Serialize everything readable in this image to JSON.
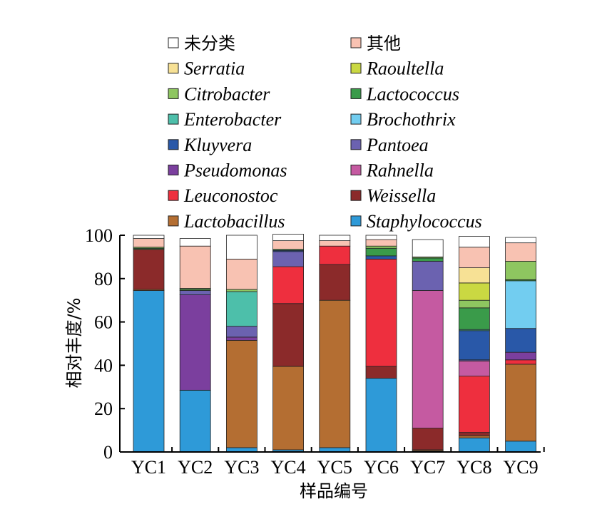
{
  "chart_data": {
    "type": "bar",
    "stacked": true,
    "title": "",
    "xlabel": "样品编号",
    "ylabel": "相对丰度/%",
    "ylim": [
      0,
      100
    ],
    "yticks": [
      0,
      20,
      40,
      60,
      80,
      100
    ],
    "grid": false,
    "legend_position": "top",
    "categories": [
      "YC1",
      "YC2",
      "YC3",
      "YC4",
      "YC5",
      "YC6",
      "YC7",
      "YC8",
      "YC9"
    ],
    "legend_order": [
      "未分类",
      "其他",
      "Serratia",
      "Raoultella",
      "Citrobacter",
      "Lactococcus",
      "Enterobacter",
      "Brochothrix",
      "Kluyvera",
      "Pantoea",
      "Pseudomonas",
      "Rahnella",
      "Leuconostoc",
      "Weissella",
      "Lactobacillus",
      "Staphylococcus"
    ],
    "series": [
      {
        "name": "Staphylococcus",
        "color": "#2e9ad8",
        "values": [
          74.5,
          28.5,
          2.0,
          1.0,
          2.0,
          34.0,
          0.5,
          6.5,
          5.0
        ]
      },
      {
        "name": "Lactobacillus",
        "color": "#b46e32",
        "values": [
          0.5,
          0.0,
          49.5,
          38.5,
          68.0,
          0.0,
          0.5,
          1.0,
          35.5
        ]
      },
      {
        "name": "Weissella",
        "color": "#8b2a2a",
        "values": [
          18.5,
          0.0,
          0.0,
          29.0,
          16.5,
          5.5,
          10.0,
          1.5,
          0.0
        ]
      },
      {
        "name": "Leuconostoc",
        "color": "#ee2f3e",
        "values": [
          0.0,
          0.0,
          0.0,
          17.0,
          8.5,
          49.5,
          0.0,
          26.0,
          2.0
        ]
      },
      {
        "name": "Rahnella",
        "color": "#c55aa1",
        "values": [
          0.0,
          0.0,
          0.0,
          0.0,
          0.0,
          0.0,
          63.5,
          7.0,
          0.0
        ]
      },
      {
        "name": "Pseudomonas",
        "color": "#7b3f9e",
        "values": [
          0.0,
          44.0,
          1.5,
          0.0,
          0.0,
          0.0,
          0.0,
          0.0,
          3.5
        ]
      },
      {
        "name": "Pantoea",
        "color": "#6b62b0",
        "values": [
          0.0,
          2.0,
          5.0,
          7.0,
          0.0,
          0.0,
          13.5,
          0.5,
          0.0
        ]
      },
      {
        "name": "Kluyvera",
        "color": "#2958a8",
        "values": [
          0.0,
          0.0,
          0.0,
          0.5,
          0.0,
          1.5,
          0.0,
          13.5,
          11.0
        ]
      },
      {
        "name": "Brochothrix",
        "color": "#72cdf0",
        "values": [
          0.0,
          0.0,
          0.0,
          0.0,
          0.0,
          0.0,
          0.0,
          0.0,
          22.0
        ]
      },
      {
        "name": "Enterobacter",
        "color": "#4dbfaa",
        "values": [
          0.0,
          0.0,
          16.0,
          0.0,
          0.0,
          0.0,
          0.0,
          0.5,
          0.0
        ]
      },
      {
        "name": "Lactococcus",
        "color": "#3a9b4a",
        "values": [
          0.5,
          0.5,
          0.0,
          0.5,
          0.0,
          3.5,
          1.5,
          10.0,
          0.5
        ]
      },
      {
        "name": "Citrobacter",
        "color": "#8ec660",
        "values": [
          0.5,
          0.5,
          1.0,
          0.0,
          0.0,
          1.0,
          0.5,
          3.5,
          8.5
        ]
      },
      {
        "name": "Raoultella",
        "color": "#cad842",
        "values": [
          0.0,
          0.0,
          0.0,
          0.0,
          0.0,
          0.0,
          0.0,
          8.0,
          0.0
        ]
      },
      {
        "name": "Serratia",
        "color": "#f7e195",
        "values": [
          0.0,
          0.0,
          0.0,
          0.0,
          0.0,
          0.0,
          0.0,
          7.0,
          0.0
        ]
      },
      {
        "name": "其他",
        "color": "#f8c2b2",
        "values": [
          4.0,
          19.5,
          14.0,
          4.0,
          2.5,
          3.0,
          0.0,
          9.5,
          8.5
        ]
      },
      {
        "name": "未分类",
        "color": "#ffffff",
        "values": [
          1.5,
          3.5,
          11.0,
          3.0,
          2.5,
          2.0,
          8.0,
          5.0,
          2.5
        ]
      }
    ]
  }
}
